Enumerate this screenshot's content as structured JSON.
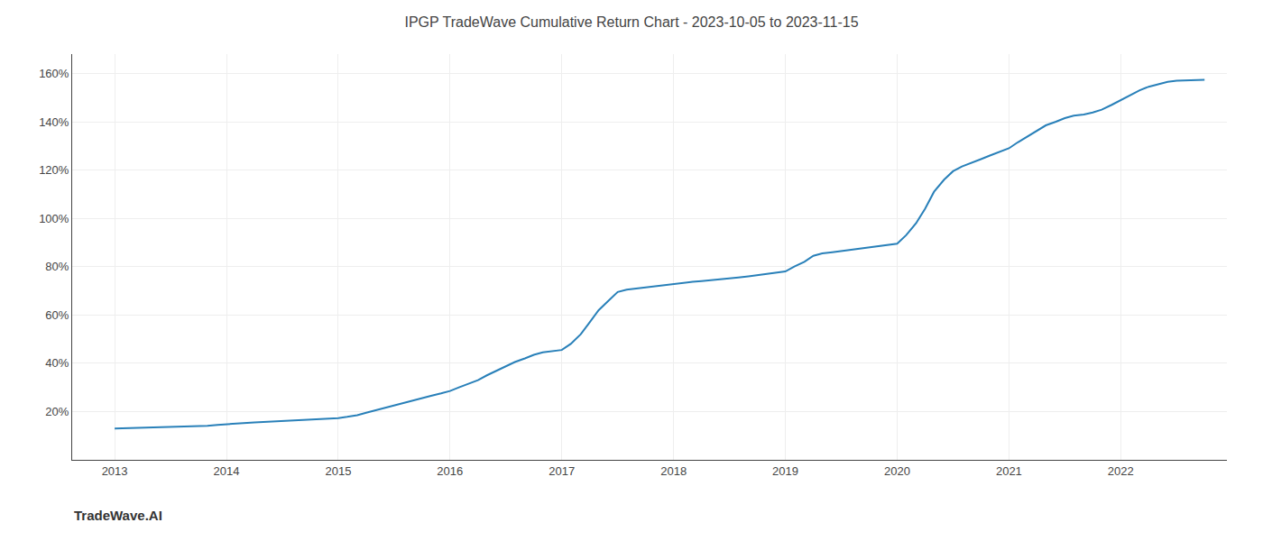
{
  "chart_data": {
    "type": "line",
    "title": "IPGP TradeWave Cumulative Return Chart - 2023-10-05 to 2023-11-15",
    "annotations": [
      "TradeWave.AI"
    ],
    "x": [
      2013.0,
      2013.08,
      2013.17,
      2013.25,
      2013.33,
      2013.42,
      2013.5,
      2013.58,
      2013.67,
      2013.75,
      2013.83,
      2013.92,
      2014.0,
      2014.08,
      2014.17,
      2014.25,
      2014.33,
      2014.42,
      2014.5,
      2014.58,
      2014.67,
      2014.75,
      2014.83,
      2014.92,
      2015.0,
      2015.08,
      2015.17,
      2015.25,
      2015.33,
      2015.42,
      2015.5,
      2015.58,
      2015.67,
      2015.75,
      2015.83,
      2015.92,
      2016.0,
      2016.08,
      2016.17,
      2016.25,
      2016.33,
      2016.42,
      2016.5,
      2016.58,
      2016.67,
      2016.75,
      2016.83,
      2016.92,
      2017.0,
      2017.08,
      2017.17,
      2017.25,
      2017.33,
      2017.42,
      2017.5,
      2017.58,
      2017.67,
      2017.75,
      2017.83,
      2017.92,
      2018.0,
      2018.08,
      2018.17,
      2018.25,
      2018.33,
      2018.42,
      2018.5,
      2018.58,
      2018.67,
      2018.75,
      2018.83,
      2018.92,
      2019.0,
      2019.08,
      2019.17,
      2019.25,
      2019.33,
      2019.42,
      2019.5,
      2019.58,
      2019.67,
      2019.75,
      2019.83,
      2019.92,
      2020.0,
      2020.08,
      2020.17,
      2020.25,
      2020.33,
      2020.42,
      2020.5,
      2020.58,
      2020.67,
      2020.75,
      2020.83,
      2020.92,
      2021.0,
      2021.08,
      2021.17,
      2021.25,
      2021.33,
      2021.42,
      2021.5,
      2021.58,
      2021.67,
      2021.75,
      2021.83,
      2021.92,
      2022.0,
      2022.08,
      2022.17,
      2022.25,
      2022.33,
      2022.42,
      2022.5,
      2022.58,
      2022.67,
      2022.75
    ],
    "values": [
      13.0,
      13.1,
      13.2,
      13.3,
      13.4,
      13.5,
      13.6,
      13.7,
      13.8,
      13.9,
      14.1,
      14.5,
      14.8,
      15.0,
      15.2,
      15.5,
      15.7,
      15.9,
      16.1,
      16.2,
      16.3,
      16.5,
      16.8,
      17.0,
      17.3,
      17.8,
      18.5,
      19.5,
      20.5,
      21.5,
      22.5,
      23.5,
      24.5,
      25.5,
      26.5,
      27.5,
      28.5,
      30.0,
      31.5,
      33.0,
      35.0,
      37.0,
      39.0,
      40.5,
      42.0,
      43.5,
      44.5,
      45.0,
      45.5,
      48.0,
      52.0,
      57.0,
      62.0,
      66.0,
      69.5,
      70.5,
      71.0,
      71.5,
      72.0,
      72.5,
      73.0,
      73.3,
      73.7,
      74.0,
      74.3,
      74.7,
      75.0,
      75.5,
      76.0,
      76.5,
      77.0,
      77.5,
      78.0,
      80.0,
      82.0,
      84.5,
      85.5,
      86.0,
      86.5,
      87.0,
      87.5,
      88.0,
      88.5,
      89.0,
      89.5,
      93.0,
      98.0,
      104.0,
      111.0,
      116.0,
      119.5,
      121.5,
      123.0,
      124.5,
      126.0,
      127.5,
      129.0,
      131.5,
      134.0,
      136.5,
      138.5,
      140.0,
      141.5,
      142.5,
      143.0,
      143.8,
      145.0,
      147.0,
      149.0,
      151.0,
      153.0,
      154.5,
      155.5,
      156.5,
      157.0,
      157.2,
      157.3,
      157.4
    ],
    "color": "#2980b9",
    "xlim": [
      2012.62,
      2022.95
    ],
    "ylim": [
      0,
      168
    ],
    "xticks": [
      2013,
      2014,
      2015,
      2016,
      2017,
      2018,
      2019,
      2020,
      2021,
      2022
    ],
    "yticks": [
      {
        "value": 20,
        "label": "20%"
      },
      {
        "value": 40,
        "label": "40%"
      },
      {
        "value": 60,
        "label": "60%"
      },
      {
        "value": 80,
        "label": "80%"
      },
      {
        "value": 100,
        "label": "100%"
      },
      {
        "value": 120,
        "label": "120%"
      },
      {
        "value": 140,
        "label": "140%"
      },
      {
        "value": 160,
        "label": "160%"
      }
    ],
    "grid": true
  }
}
